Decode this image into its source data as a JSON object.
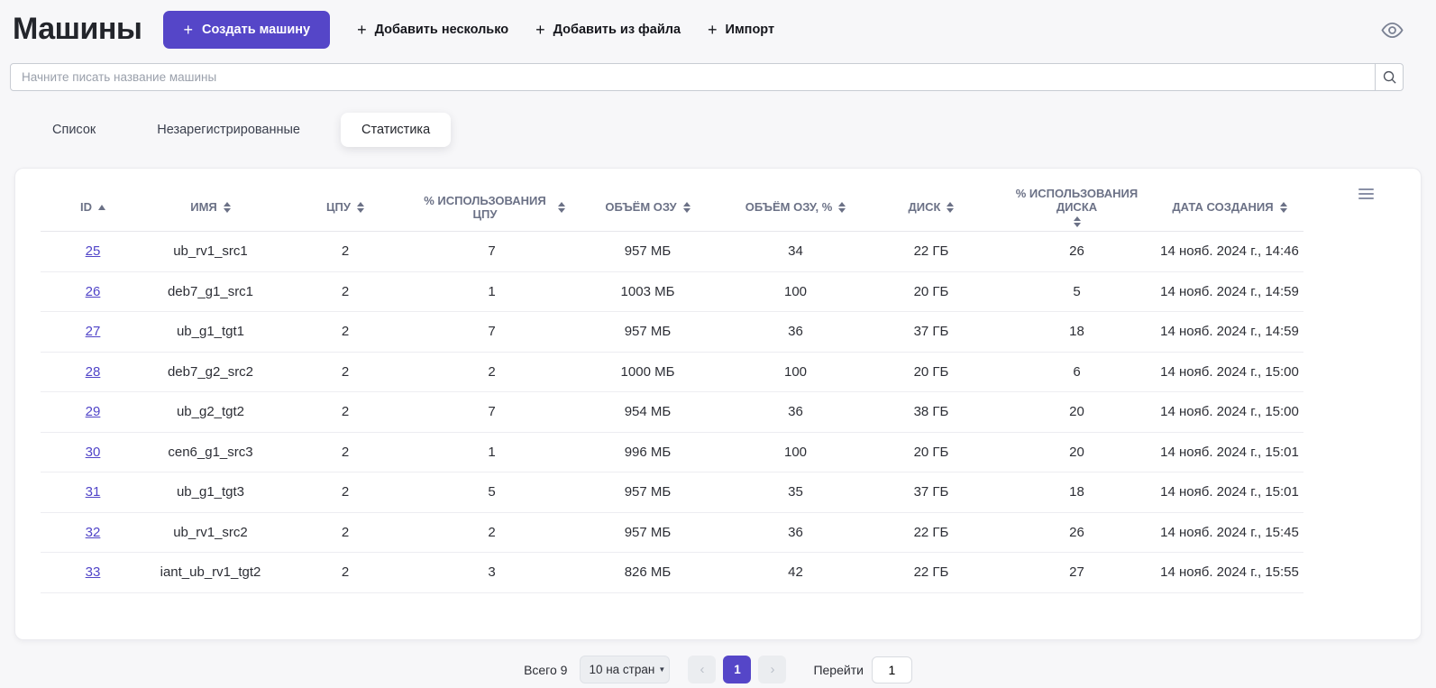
{
  "page": {
    "title": "Машины"
  },
  "toolbar": {
    "create_label": "Создать машину",
    "add_multiple_label": "Добавить несколько",
    "add_from_file_label": "Добавить из файла",
    "import_label": "Импорт"
  },
  "search": {
    "placeholder": "Начните писать название машины",
    "value": ""
  },
  "tabs": [
    {
      "label": "Список",
      "active": false
    },
    {
      "label": "Незарегистрированные",
      "active": false
    },
    {
      "label": "Статистика",
      "active": true
    }
  ],
  "table": {
    "columns": [
      {
        "label": "ID",
        "sort": "asc"
      },
      {
        "label": "ИМЯ",
        "sort": "both"
      },
      {
        "label": "ЦПУ",
        "sort": "both"
      },
      {
        "label": "% ИСПОЛЬЗОВАНИЯ ЦПУ",
        "sort": "both"
      },
      {
        "label": "ОБЪЁМ ОЗУ",
        "sort": "both"
      },
      {
        "label": "ОБЪЁМ ОЗУ, %",
        "sort": "both"
      },
      {
        "label": "ДИСК",
        "sort": "both"
      },
      {
        "label": "% ИСПОЛЬЗОВАНИЯ ДИСКА",
        "sort": "both",
        "stacked": true
      },
      {
        "label": "ДАТА СОЗДАНИЯ",
        "sort": "both"
      }
    ],
    "rows": [
      [
        "25",
        "ub_rv1_src1",
        "2",
        "7",
        "957 МБ",
        "34",
        "22 ГБ",
        "26",
        "14 нояб. 2024 г., 14:46"
      ],
      [
        "26",
        "deb7_g1_src1",
        "2",
        "1",
        "1003 МБ",
        "100",
        "20 ГБ",
        "5",
        "14 нояб. 2024 г., 14:59"
      ],
      [
        "27",
        "ub_g1_tgt1",
        "2",
        "7",
        "957 МБ",
        "36",
        "37 ГБ",
        "18",
        "14 нояб. 2024 г., 14:59"
      ],
      [
        "28",
        "deb7_g2_src2",
        "2",
        "2",
        "1000 МБ",
        "100",
        "20 ГБ",
        "6",
        "14 нояб. 2024 г., 15:00"
      ],
      [
        "29",
        "ub_g2_tgt2",
        "2",
        "7",
        "954 МБ",
        "36",
        "38 ГБ",
        "20",
        "14 нояб. 2024 г., 15:00"
      ],
      [
        "30",
        "cen6_g1_src3",
        "2",
        "1",
        "996 МБ",
        "100",
        "20 ГБ",
        "20",
        "14 нояб. 2024 г., 15:01"
      ],
      [
        "31",
        "ub_g1_tgt3",
        "2",
        "5",
        "957 МБ",
        "35",
        "37 ГБ",
        "18",
        "14 нояб. 2024 г., 15:01"
      ],
      [
        "32",
        "ub_rv1_src2",
        "2",
        "2",
        "957 МБ",
        "36",
        "22 ГБ",
        "26",
        "14 нояб. 2024 г., 15:45"
      ],
      [
        "33",
        "iant_ub_rv1_tgt2",
        "2",
        "3",
        "826 МБ",
        "42",
        "22 ГБ",
        "27",
        "14 нояб. 2024 г., 15:55"
      ]
    ]
  },
  "pagination": {
    "total_label": "Всего 9",
    "page_size_value": "10 на стран",
    "current_page": "1",
    "goto_label": "Перейти",
    "goto_value": "1"
  },
  "icons": {
    "plus": "+",
    "caret_down": "▼",
    "chevron_left": "‹",
    "chevron_right": "›",
    "eye": "eye-outline",
    "search": "magnifier",
    "menu": "hamburger-lines",
    "sort_asc": "triangle-up",
    "sort_both": "triangles-up-down"
  },
  "colors": {
    "accent": "#5546c8",
    "link": "#5044c8",
    "header_text": "#6b7186",
    "page_background": "#f7f7f9"
  }
}
